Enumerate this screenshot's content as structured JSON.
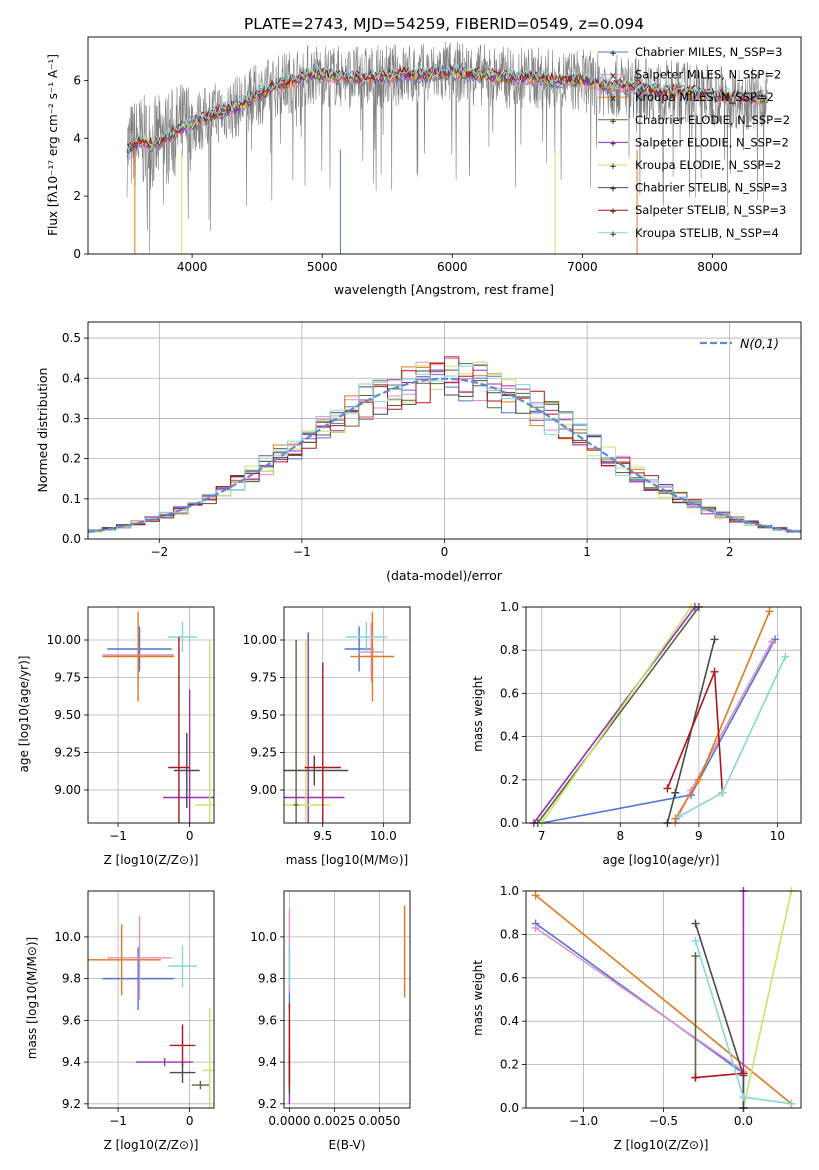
{
  "page_title": "PLATE=2743, MJD=54259, FIBERID=0549, z=0.094",
  "colors": [
    "#4f76d2",
    "#e38fc6",
    "#e07a1f",
    "#56673b",
    "#9a2fb8",
    "#c9e36a",
    "#4a4a4a",
    "#b3141a",
    "#86d6dc"
  ],
  "chart_data": [
    {
      "id": "spectrum",
      "type": "line",
      "title": "PLATE=2743, MJD=54259, FIBERID=0549, z=0.094",
      "xlabel": "wavelength [Angstrom, rest frame]",
      "ylabel": "Flux [fλ10⁻¹⁷ erg cm⁻² s⁻¹ A⁻¹]",
      "xlim": [
        3200,
        8680
      ],
      "ylim": [
        0,
        7.5
      ],
      "xticks": [
        "4000",
        "5000",
        "6000",
        "7000",
        "8000"
      ],
      "xtick_values": [
        4000,
        5000,
        6000,
        7000,
        8000
      ],
      "yticks": [
        "0",
        "2",
        "4",
        "6"
      ],
      "ytick_values": [
        0,
        2,
        4,
        6
      ],
      "legend_position": "upper right",
      "series": [
        {
          "name": "Chabrier MILES, N_SSP=3",
          "color": "#4f76d2",
          "marker": "+"
        },
        {
          "name": "Salpeter MILES, N_SSP=2",
          "color": "#e38fc6",
          "marker": "x"
        },
        {
          "name": "Kroupa MILES, N_SSP=2",
          "color": "#e07a1f",
          "marker": "x"
        },
        {
          "name": "Chabrier ELODIE, N_SSP=2",
          "color": "#56673b",
          "marker": "+"
        },
        {
          "name": "Salpeter ELODIE, N_SSP=2",
          "color": "#9a2fb8",
          "marker": "+"
        },
        {
          "name": "Kroupa ELODIE, N_SSP=2",
          "color": "#c9e36a",
          "marker": "+"
        },
        {
          "name": "Chabrier STELIB, N_SSP=3",
          "color": "#4a4a4a",
          "marker": "+"
        },
        {
          "name": "Salpeter STELIB, N_SSP=3",
          "color": "#b3141a",
          "marker": "+"
        },
        {
          "name": "Kroupa STELIB, N_SSP=4",
          "color": "#86d6dc",
          "marker": "+"
        }
      ],
      "model_curve": {
        "x": [
          3500,
          3600,
          3700,
          3800,
          3900,
          4000,
          4100,
          4200,
          4300,
          4400,
          4500,
          4600,
          4700,
          4800,
          4900,
          5000,
          5200,
          5400,
          5600,
          5800,
          6000,
          6200,
          6400,
          6600,
          6800,
          7000,
          7200,
          7400,
          7600,
          7800,
          8000,
          8200,
          8400
        ],
        "y": [
          3.6,
          3.9,
          3.8,
          4.0,
          4.3,
          4.5,
          4.7,
          4.9,
          5.0,
          5.2,
          5.5,
          5.7,
          5.9,
          6.0,
          6.2,
          6.2,
          6.1,
          6.1,
          6.2,
          6.2,
          6.3,
          6.2,
          6.1,
          6.1,
          6.0,
          6.0,
          5.8,
          5.8,
          5.6,
          5.6,
          5.5,
          5.4,
          5.4
        ]
      }
    },
    {
      "id": "residuals",
      "type": "line",
      "xlabel": "(data-model)/error",
      "ylabel": "Normed distribution",
      "xlim": [
        -2.5,
        2.5
      ],
      "ylim": [
        0,
        0.54
      ],
      "xticks": [
        "−2",
        "−1",
        "0",
        "1",
        "2"
      ],
      "xtick_values": [
        -2,
        -1,
        0,
        1,
        2
      ],
      "yticks": [
        "0.0",
        "0.1",
        "0.2",
        "0.3",
        "0.4",
        "0.5"
      ],
      "ytick_values": [
        0,
        0.1,
        0.2,
        0.3,
        0.4,
        0.5
      ],
      "legend": "N(0,1)",
      "legend_position": "upper right",
      "grid": true
    },
    {
      "id": "age-vs-Z",
      "type": "scatter",
      "xlabel": "Z [log10(Z/Z⊙)]",
      "ylabel": "age  [log10(age/yr)]",
      "xlim": [
        -1.42,
        0.34
      ],
      "ylim": [
        8.78,
        10.22
      ],
      "xticks": [
        "−1",
        "0"
      ],
      "xtick_values": [
        -1,
        0
      ],
      "yticks": [
        "9.00",
        "9.25",
        "9.50",
        "9.75",
        "10.00"
      ],
      "ytick_values": [
        9.0,
        9.25,
        9.5,
        9.75,
        10.0
      ],
      "points": [
        {
          "x": -0.7,
          "y": 9.94,
          "xerr": 0.45,
          "yerr": 0.15,
          "color": "#4f76d2"
        },
        {
          "x": -0.72,
          "y": 9.9,
          "xerr": 0.5,
          "yerr": 0.2,
          "color": "#e38fc6"
        },
        {
          "x": -0.72,
          "y": 9.89,
          "xerr": 0.5,
          "yerr": 0.3,
          "color": "#e07a1f"
        },
        {
          "x": -0.1,
          "y": 10.02,
          "xerr": 0.2,
          "yerr": 0.1,
          "color": "#86d6dc"
        },
        {
          "x": 0.0,
          "y": 8.95,
          "xerr": 0.37,
          "yerr": 0.72,
          "color": "#9a2fb8"
        },
        {
          "x": 0.28,
          "y": 8.9,
          "xerr": 0.2,
          "yerr": 1.1,
          "color": "#c9e36a"
        },
        {
          "x": -0.04,
          "y": 9.13,
          "xerr": 0.18,
          "yerr": 0.25,
          "color": "#4a4a4a"
        },
        {
          "x": -0.15,
          "y": 9.15,
          "xerr": 0.15,
          "yerr": 0.87,
          "color": "#b3141a"
        }
      ]
    },
    {
      "id": "age-vs-mass",
      "type": "scatter",
      "xlabel": "mass [log10(M/M⊙)]",
      "ylabel": "",
      "xlim": [
        9.18,
        10.22
      ],
      "ylim": [
        8.78,
        10.22
      ],
      "xticks": [
        "9.5",
        "10.0"
      ],
      "xtick_values": [
        9.5,
        10.0
      ],
      "yticks": [
        "9.00",
        "9.25",
        "9.50",
        "9.75",
        "10.00"
      ],
      "ytick_values": [
        9.0,
        9.25,
        9.5,
        9.75,
        10.0
      ],
      "points": [
        {
          "x": 9.8,
          "y": 9.94,
          "xerr": 0.12,
          "yerr": 0.15,
          "color": "#4f76d2"
        },
        {
          "x": 9.9,
          "y": 9.92,
          "xerr": 0.1,
          "yerr": 0.2,
          "color": "#e38fc6"
        },
        {
          "x": 9.91,
          "y": 9.89,
          "xerr": 0.18,
          "yerr": 0.3,
          "color": "#e07a1f"
        },
        {
          "x": 9.86,
          "y": 10.02,
          "xerr": 0.17,
          "yerr": 0.1,
          "color": "#86d6dc"
        },
        {
          "x": 9.38,
          "y": 8.95,
          "xerr": 0.3,
          "yerr": 1.1,
          "color": "#9a2fb8"
        },
        {
          "x": 9.36,
          "y": 8.9,
          "xerr": 0.2,
          "yerr": 1.1,
          "color": "#c9e36a"
        },
        {
          "x": 9.43,
          "y": 9.13,
          "xerr": 0.28,
          "yerr": 0.1,
          "color": "#4a4a4a"
        },
        {
          "x": 9.5,
          "y": 9.15,
          "xerr": 0.15,
          "yerr": 0.7,
          "color": "#b3141a"
        },
        {
          "x": 9.28,
          "y": 8.9,
          "xerr": 0.02,
          "yerr": 1.1,
          "color": "#56673b"
        }
      ]
    },
    {
      "id": "mass-vs-Z",
      "type": "scatter",
      "xlabel": "Z [log10(Z/Z⊙)]",
      "ylabel": "mass [log10(M/M⊙)]",
      "xlim": [
        -1.42,
        0.34
      ],
      "ylim": [
        9.18,
        10.22
      ],
      "xticks": [
        "−1",
        "0"
      ],
      "xtick_values": [
        -1,
        0
      ],
      "yticks": [
        "9.2",
        "9.4",
        "9.6",
        "9.8",
        "10.0"
      ],
      "ytick_values": [
        9.2,
        9.4,
        9.6,
        9.8,
        10.0
      ],
      "points": [
        {
          "x": -0.72,
          "y": 9.8,
          "xerr": 0.5,
          "yerr": 0.15,
          "color": "#4f76d2"
        },
        {
          "x": -0.7,
          "y": 9.9,
          "xerr": 0.45,
          "yerr": 0.2,
          "color": "#e38fc6"
        },
        {
          "x": -0.95,
          "y": 9.89,
          "xerr": 0.55,
          "yerr": 0.17,
          "color": "#e07a1f"
        },
        {
          "x": -0.1,
          "y": 9.86,
          "xerr": 0.2,
          "yerr": 0.1,
          "color": "#86d6dc"
        },
        {
          "x": -0.35,
          "y": 9.4,
          "xerr": 0.4,
          "yerr": 0.02,
          "color": "#9a2fb8"
        },
        {
          "x": 0.28,
          "y": 9.36,
          "xerr": 0.1,
          "yerr": 0.3,
          "color": "#c9e36a"
        },
        {
          "x": -0.1,
          "y": 9.35,
          "xerr": 0.18,
          "yerr": 0.05,
          "color": "#4a4a4a"
        },
        {
          "x": -0.1,
          "y": 9.48,
          "xerr": 0.18,
          "yerr": 0.1,
          "color": "#b3141a"
        },
        {
          "x": 0.15,
          "y": 9.29,
          "xerr": 0.12,
          "yerr": 0.02,
          "color": "#56673b"
        }
      ]
    },
    {
      "id": "mass-vs-EBV",
      "type": "scatter",
      "xlabel": "E(B-V)",
      "ylabel": "",
      "xlim": [
        -0.0003,
        0.0067
      ],
      "ylim": [
        9.18,
        10.22
      ],
      "xticks": [
        "0.0000",
        "0.0025",
        "0.0050"
      ],
      "xtick_values": [
        0,
        0.0025,
        0.005
      ],
      "yticks": [
        "9.2",
        "9.4",
        "9.6",
        "9.8",
        "10.0"
      ],
      "ytick_values": [
        9.2,
        9.4,
        9.6,
        9.8,
        10.0
      ],
      "points": [
        {
          "x": 0.0,
          "y": 9.8,
          "xerr": 0,
          "yerr": 0.15,
          "color": "#4f76d2"
        },
        {
          "x": 0.0,
          "y": 9.93,
          "xerr": 0,
          "yerr": 0.2,
          "color": "#e38fc6"
        },
        {
          "x": 0.0064,
          "y": 9.93,
          "xerr": 0,
          "yerr": 0.22,
          "color": "#e07a1f"
        },
        {
          "x": 0.0,
          "y": 9.86,
          "xerr": 0,
          "yerr": 0.1,
          "color": "#86d6dc"
        },
        {
          "x": 0.0,
          "y": 9.4,
          "xerr": 0,
          "yerr": 0.2,
          "color": "#9a2fb8"
        },
        {
          "x": 0.0,
          "y": 9.3,
          "xerr": 0,
          "yerr": 0.05,
          "color": "#c9e36a"
        },
        {
          "x": 0.0,
          "y": 9.35,
          "xerr": 0,
          "yerr": 0.1,
          "color": "#4a4a4a"
        },
        {
          "x": 0.0,
          "y": 9.48,
          "xerr": 0,
          "yerr": 0.2,
          "color": "#b3141a"
        }
      ]
    },
    {
      "id": "weight-vs-age",
      "type": "line",
      "xlabel": "age  [log10(age/yr)]",
      "ylabel": "mass weight",
      "xlim": [
        6.8,
        10.3
      ],
      "ylim": [
        0,
        1.0
      ],
      "xticks": [
        "7",
        "8",
        "9",
        "10"
      ],
      "xtick_values": [
        7,
        8,
        9,
        10
      ],
      "yticks": [
        "0.0",
        "0.2",
        "0.4",
        "0.6",
        "0.8",
        "1.0"
      ],
      "ytick_values": [
        0,
        0.2,
        0.4,
        0.6,
        0.8,
        1.0
      ],
      "series": [
        {
          "color": "#4f76d2",
          "x": [
            7.0,
            8.9,
            9.97
          ],
          "y": [
            0.0,
            0.13,
            0.85
          ]
        },
        {
          "color": "#e38fc6",
          "x": [
            8.7,
            8.9,
            9.93
          ],
          "y": [
            0.0,
            0.15,
            0.84
          ]
        },
        {
          "color": "#e07a1f",
          "x": [
            8.7,
            9.0,
            9.9
          ],
          "y": [
            0.02,
            0.2,
            0.98
          ]
        },
        {
          "color": "#56673b",
          "x": [
            6.95,
            9.0
          ],
          "y": [
            0.0,
            1.0
          ]
        },
        {
          "color": "#9a2fb8",
          "x": [
            6.9,
            8.95
          ],
          "y": [
            0.0,
            1.0
          ]
        },
        {
          "color": "#c9e36a",
          "x": [
            7.0,
            8.9
          ],
          "y": [
            0.0,
            1.0
          ]
        },
        {
          "color": "#4a4a4a",
          "x": [
            8.6,
            8.7,
            9.2
          ],
          "y": [
            0.0,
            0.14,
            0.85
          ]
        },
        {
          "color": "#b3141a",
          "x": [
            8.6,
            9.2,
            9.3
          ],
          "y": [
            0.16,
            0.7,
            0.14
          ]
        },
        {
          "color": "#86d6dc",
          "x": [
            8.75,
            9.3,
            10.1
          ],
          "y": [
            0.03,
            0.14,
            0.77
          ]
        }
      ]
    },
    {
      "id": "weight-vs-Z",
      "type": "line",
      "xlabel": "Z [log10(Z/Z⊙)]",
      "ylabel": "mass weight",
      "xlim": [
        -1.36,
        0.36
      ],
      "ylim": [
        0,
        1.0
      ],
      "xticks": [
        "−1.0",
        "−0.5",
        "0.0"
      ],
      "xtick_values": [
        -1.0,
        -0.5,
        0.0
      ],
      "yticks": [
        "0.0",
        "0.2",
        "0.4",
        "0.6",
        "0.8",
        "1.0"
      ],
      "ytick_values": [
        0,
        0.2,
        0.4,
        0.6,
        0.8,
        1.0
      ],
      "series": [
        {
          "color": "#4f76d2",
          "x": [
            -1.3,
            0.0
          ],
          "y": [
            0.85,
            0.16
          ]
        },
        {
          "color": "#e38fc6",
          "x": [
            -1.3,
            0.0
          ],
          "y": [
            0.83,
            0.17
          ]
        },
        {
          "color": "#e07a1f",
          "x": [
            -1.3,
            0.3
          ],
          "y": [
            0.98,
            0.02
          ]
        },
        {
          "color": "#56673b",
          "x": [
            -0.3,
            -0.3
          ],
          "y": [
            0.7,
            0.14
          ]
        },
        {
          "color": "#9a2fb8",
          "x": [
            0.0,
            0.0
          ],
          "y": [
            1.0,
            0.0
          ]
        },
        {
          "color": "#c9e36a",
          "x": [
            0.0,
            0.3
          ],
          "y": [
            0.0,
            1.0
          ]
        },
        {
          "color": "#4a4a4a",
          "x": [
            -0.3,
            0.0,
            0.0
          ],
          "y": [
            0.85,
            0.15,
            0.0
          ]
        },
        {
          "color": "#b3141a",
          "x": [
            -0.3,
            0.0
          ],
          "y": [
            0.14,
            0.16
          ]
        },
        {
          "color": "#86d6dc",
          "x": [
            -0.3,
            0.0,
            0.3
          ],
          "y": [
            0.77,
            0.05,
            0.02
          ]
        }
      ]
    }
  ]
}
